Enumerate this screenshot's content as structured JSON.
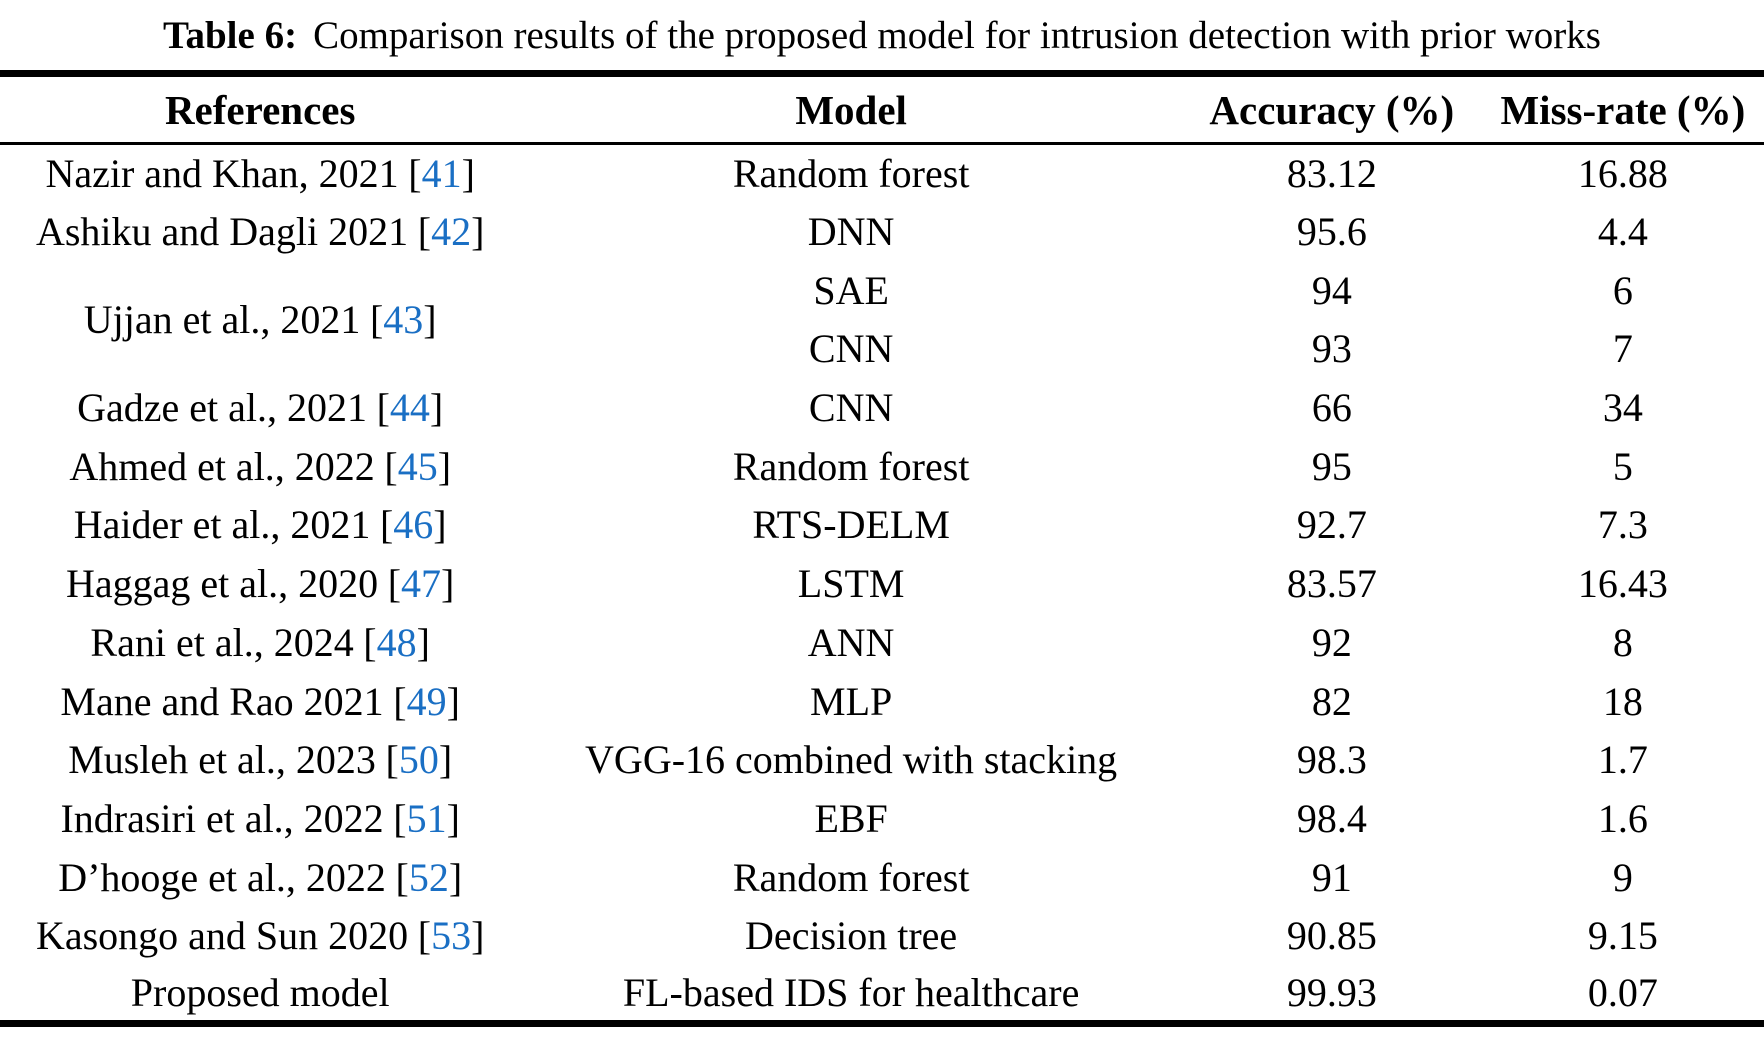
{
  "title": {
    "prefix": "Table 6:",
    "text": "Comparison results of the proposed model for intrusion detection with prior works"
  },
  "marks": {
    "open_bracket": "[",
    "close_bracket": "]"
  },
  "colors": {
    "citation_blue": "#1a6fc4",
    "text": "#000000",
    "rule": "#000000",
    "background": "#ffffff"
  },
  "header": {
    "references": "References",
    "model": "Model",
    "accuracy": "Accuracy (%)",
    "miss_rate": "Miss-rate (%)"
  },
  "rows": [
    {
      "reference": "Nazir and Khan, 2021",
      "citation": "41",
      "model": "Random forest",
      "accuracy": "83.12",
      "miss_rate": "16.88"
    },
    {
      "reference": "Ashiku and Dagli 2021",
      "citation": "42",
      "model": "DNN",
      "accuracy": "95.6",
      "miss_rate": "4.4"
    },
    {
      "reference": "Ujjan et al., 2021",
      "citation": "43",
      "model": "SAE",
      "accuracy": "94",
      "miss_rate": "6"
    },
    {
      "reference": null,
      "citation": null,
      "model": "CNN",
      "accuracy": "93",
      "miss_rate": "7"
    },
    {
      "reference": "Gadze et al., 2021",
      "citation": "44",
      "model": "CNN",
      "accuracy": "66",
      "miss_rate": "34"
    },
    {
      "reference": "Ahmed et al., 2022",
      "citation": "45",
      "model": "Random forest",
      "accuracy": "95",
      "miss_rate": "5"
    },
    {
      "reference": "Haider et al., 2021",
      "citation": "46",
      "model": "RTS-DELM",
      "accuracy": "92.7",
      "miss_rate": "7.3"
    },
    {
      "reference": "Haggag et al., 2020",
      "citation": "47",
      "model": "LSTM",
      "accuracy": "83.57",
      "miss_rate": "16.43"
    },
    {
      "reference": "Rani et al., 2024",
      "citation": "48",
      "model": "ANN",
      "accuracy": "92",
      "miss_rate": "8"
    },
    {
      "reference": "Mane and Rao 2021",
      "citation": "49",
      "model": "MLP",
      "accuracy": "82",
      "miss_rate": "18"
    },
    {
      "reference": "Musleh et al., 2023",
      "citation": "50",
      "model": "VGG-16 combined with stacking",
      "accuracy": "98.3",
      "miss_rate": "1.7"
    },
    {
      "reference": "Indrasiri et al., 2022",
      "citation": "51",
      "model": "EBF",
      "accuracy": "98.4",
      "miss_rate": "1.6"
    },
    {
      "reference": "D’hooge et al., 2022",
      "citation": "52",
      "model": "Random forest",
      "accuracy": "91",
      "miss_rate": "9"
    },
    {
      "reference": "Kasongo and Sun 2020",
      "citation": "53",
      "model": "Decision tree",
      "accuracy": "90.85",
      "miss_rate": "9.15"
    },
    {
      "reference": "Proposed model",
      "citation": null,
      "model": "FL-based IDS for healthcare",
      "accuracy": "99.93",
      "miss_rate": "0.07"
    }
  ],
  "chart_data": {
    "type": "table",
    "title": "Table 6: Comparison results of the proposed model for intrusion detection with prior works",
    "columns": [
      "References",
      "Model",
      "Accuracy (%)",
      "Miss-rate (%)"
    ],
    "rows": [
      [
        "Nazir and Khan, 2021 [41]",
        "Random forest",
        83.12,
        16.88
      ],
      [
        "Ashiku and Dagli 2021 [42]",
        "DNN",
        95.6,
        4.4
      ],
      [
        "Ujjan et al., 2021 [43]",
        "SAE",
        94,
        6
      ],
      [
        "Ujjan et al., 2021 [43]",
        "CNN",
        93,
        7
      ],
      [
        "Gadze et al., 2021 [44]",
        "CNN",
        66,
        34
      ],
      [
        "Ahmed et al., 2022 [45]",
        "Random forest",
        95,
        5
      ],
      [
        "Haider et al., 2021 [46]",
        "RTS-DELM",
        92.7,
        7.3
      ],
      [
        "Haggag et al., 2020 [47]",
        "LSTM",
        83.57,
        16.43
      ],
      [
        "Rani et al., 2024 [48]",
        "ANN",
        92,
        8
      ],
      [
        "Mane and Rao 2021 [49]",
        "MLP",
        82,
        18
      ],
      [
        "Musleh et al., 2023 [50]",
        "VGG-16 combined with stacking",
        98.3,
        1.7
      ],
      [
        "Indrasiri et al., 2022 [51]",
        "EBF",
        98.4,
        1.6
      ],
      [
        "D’hooge et al., 2022 [52]",
        "Random forest",
        91,
        9
      ],
      [
        "Kasongo and Sun 2020 [53]",
        "Decision tree",
        90.85,
        9.15
      ],
      [
        "Proposed model",
        "FL-based IDS for healthcare",
        99.93,
        0.07
      ]
    ]
  }
}
